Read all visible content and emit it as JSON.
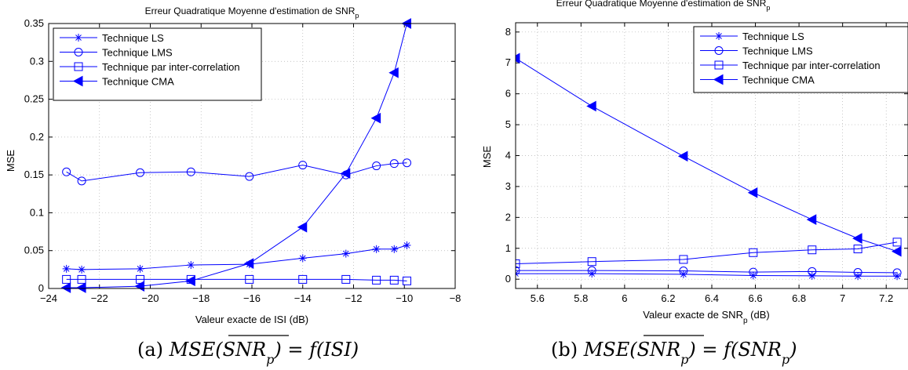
{
  "colors": {
    "series": "#0000ff",
    "axis": "#000000",
    "grid": "#b0b0b0"
  },
  "chart_data": [
    {
      "type": "line",
      "title_main": "Erreur Quadratique Moyenne d'estimation de SNR",
      "title_sub": "p",
      "xlabel": "Valeur exacte de ISI (dB)",
      "ylabel": "MSE",
      "xlim": [
        -24,
        -8
      ],
      "ylim": [
        0,
        0.35
      ],
      "xticks": [
        "−24",
        "−22",
        "−20",
        "−18",
        "−16",
        "−14",
        "−12",
        "−10",
        "−8"
      ],
      "yticks": [
        "0",
        "0.05",
        "0.1",
        "0.15",
        "0.2",
        "0.25",
        "0.3",
        "0.35"
      ],
      "grid": true,
      "legend_position": "top-left",
      "series": [
        {
          "name": "Technique LS",
          "marker": "star",
          "x": [
            -23.3,
            -22.7,
            -20.4,
            -18.4,
            -16.1,
            -14.0,
            -12.3,
            -11.1,
            -10.4,
            -9.9
          ],
          "y": [
            0.026,
            0.025,
            0.026,
            0.031,
            0.032,
            0.04,
            0.046,
            0.052,
            0.052,
            0.057
          ]
        },
        {
          "name": "Technique LMS",
          "marker": "circle",
          "x": [
            -23.3,
            -22.7,
            -20.4,
            -18.4,
            -16.1,
            -14.0,
            -12.3,
            -11.1,
            -10.4,
            -9.9
          ],
          "y": [
            0.154,
            0.142,
            0.153,
            0.154,
            0.148,
            0.163,
            0.15,
            0.162,
            0.165,
            0.166
          ]
        },
        {
          "name": "Technique par inter-correlation",
          "marker": "square",
          "x": [
            -23.3,
            -22.7,
            -20.4,
            -18.4,
            -16.1,
            -14.0,
            -12.3,
            -11.1,
            -10.4,
            -9.9
          ],
          "y": [
            0.012,
            0.012,
            0.012,
            0.012,
            0.012,
            0.012,
            0.012,
            0.011,
            0.011,
            0.01
          ]
        },
        {
          "name": "Technique CMA",
          "marker": "triangle-left",
          "x": [
            -23.3,
            -22.7,
            -20.4,
            -18.4,
            -16.1,
            -14.0,
            -12.3,
            -11.1,
            -10.4,
            -9.9
          ],
          "y": [
            0.001,
            0.001,
            0.003,
            0.01,
            0.033,
            0.081,
            0.152,
            0.225,
            0.285,
            0.35
          ]
        }
      ]
    },
    {
      "type": "line",
      "title_main": "Erreur Quadratique Moyenne d'estimation de SNR",
      "title_sub": "p",
      "xlabel_main": "Valeur exacte de SNR",
      "xlabel_sub": "p",
      "xlabel_unit": " (dB)",
      "ylabel": "MSE",
      "xlim": [
        5.5,
        7.3
      ],
      "ylim": [
        -0.3,
        8.3
      ],
      "xtick_values": [
        5.6,
        5.8,
        6.0,
        6.2,
        6.4,
        6.6,
        6.8,
        7.0,
        7.2
      ],
      "xticks": [
        "5.6",
        "5.8",
        "6",
        "6.2",
        "6.4",
        "6.6",
        "6.8",
        "7",
        "7.2"
      ],
      "ytick_values": [
        0,
        1,
        2,
        3,
        4,
        5,
        6,
        7,
        8
      ],
      "yticks": [
        "0",
        "1",
        "2",
        "3",
        "4",
        "5",
        "6",
        "7",
        "8"
      ],
      "grid": true,
      "legend_position": "top-right",
      "series": [
        {
          "name": "Technique LS",
          "marker": "star",
          "x": [
            5.5,
            5.85,
            6.27,
            6.59,
            6.86,
            7.07,
            7.25
          ],
          "y": [
            0.18,
            0.18,
            0.16,
            0.12,
            0.11,
            0.1,
            0.1
          ]
        },
        {
          "name": "Technique LMS",
          "marker": "circle",
          "x": [
            5.5,
            5.85,
            6.27,
            6.59,
            6.86,
            7.07,
            7.25
          ],
          "y": [
            0.28,
            0.28,
            0.27,
            0.23,
            0.25,
            0.22,
            0.21
          ]
        },
        {
          "name": "Technique par inter-correlation",
          "marker": "square",
          "x": [
            5.5,
            5.85,
            6.27,
            6.59,
            6.86,
            7.07,
            7.25
          ],
          "y": [
            0.5,
            0.57,
            0.64,
            0.86,
            0.95,
            0.98,
            1.2
          ]
        },
        {
          "name": "Technique CMA",
          "marker": "triangle-left",
          "x": [
            5.5,
            5.85,
            6.27,
            6.59,
            6.86,
            7.07,
            7.25
          ],
          "y": [
            7.15,
            5.6,
            3.98,
            2.8,
            1.93,
            1.32,
            0.9
          ]
        }
      ]
    }
  ],
  "captions": {
    "a": {
      "label": "(a) ",
      "expr": "MSE(SNR",
      "sub": "p",
      "rest": ") = f(ISI)"
    },
    "b": {
      "label": "(b) ",
      "expr": "MSE(SNR",
      "sub": "p",
      "rest": ") = f(SNR",
      "rest_sub": "p",
      "rest_end": ")"
    }
  }
}
